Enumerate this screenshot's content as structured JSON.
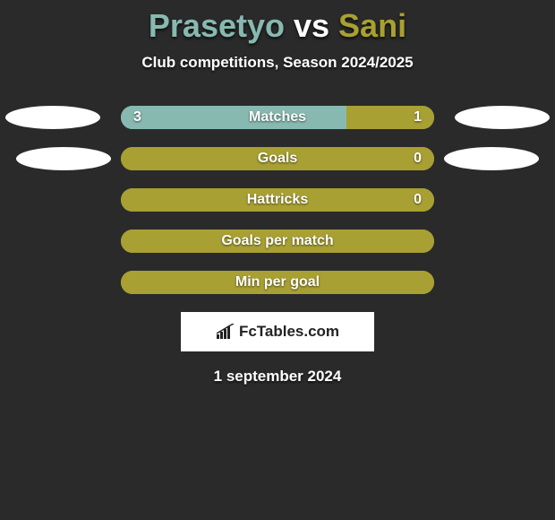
{
  "title": {
    "player1": "Prasetyo",
    "vs": " vs ",
    "player2": "Sani",
    "player1_color": "#87b9b0",
    "player2_color": "#a8a032",
    "fontsize": 36
  },
  "subtitle": "Club competitions, Season 2024/2025",
  "subtitle_color": "#ffffff",
  "background_color": "#2a2a2a",
  "bar_track_width": 350,
  "oval_left_color": "#ffffff",
  "oval_right_color": "#ffffff",
  "rows": [
    {
      "label": "Matches",
      "left_value": "3",
      "right_value": "1",
      "left_fill_pct": 72,
      "right_fill_pct": 28,
      "left_fill_color": "#87b9b0",
      "right_fill_color": "#a8a032",
      "track_color": "#87b9b0",
      "show_left_oval": true,
      "show_right_oval": true
    },
    {
      "label": "Goals",
      "left_value": "",
      "right_value": "0",
      "left_fill_pct": 0,
      "right_fill_pct": 100,
      "left_fill_color": "#87b9b0",
      "right_fill_color": "#a8a032",
      "track_color": "#a8a032",
      "show_left_oval": true,
      "show_right_oval": true,
      "oval_left_offset": 12,
      "oval_right_offset": 12
    },
    {
      "label": "Hattricks",
      "left_value": "",
      "right_value": "0",
      "left_fill_pct": 0,
      "right_fill_pct": 100,
      "left_fill_color": "#87b9b0",
      "right_fill_color": "#a8a032",
      "track_color": "#a8a032",
      "show_left_oval": false,
      "show_right_oval": false
    },
    {
      "label": "Goals per match",
      "left_value": "",
      "right_value": "",
      "left_fill_pct": 0,
      "right_fill_pct": 100,
      "left_fill_color": "#87b9b0",
      "right_fill_color": "#a8a032",
      "track_color": "#a8a032",
      "show_left_oval": false,
      "show_right_oval": false
    },
    {
      "label": "Min per goal",
      "left_value": "",
      "right_value": "",
      "left_fill_pct": 0,
      "right_fill_pct": 100,
      "left_fill_color": "#87b9b0",
      "right_fill_color": "#a8a032",
      "track_color": "#a8a032",
      "show_left_oval": false,
      "show_right_oval": false
    }
  ],
  "logo_text": "FcTables.com",
  "logo_bg": "#ffffff",
  "logo_text_color": "#222222",
  "date": "1 september 2024"
}
